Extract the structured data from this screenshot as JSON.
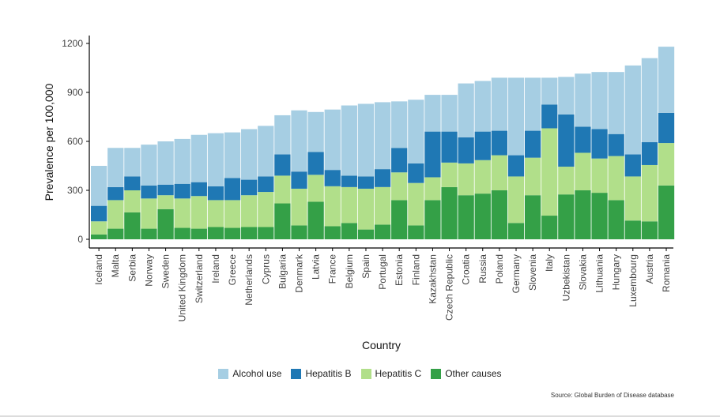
{
  "chart_data": {
    "type": "bar",
    "stacked": true,
    "xlabel": "Country",
    "ylabel": "Prevalence per 100,000",
    "ylim": [
      0,
      1250
    ],
    "yticks": [
      0,
      300,
      600,
      900,
      1200
    ],
    "grid": false,
    "legend_position": "bottom",
    "categories": [
      "Iceland",
      "Malta",
      "Serbia",
      "Norway",
      "Sweden",
      "United Kingdom",
      "Switzerland",
      "Ireland",
      "Greece",
      "Netherlands",
      "Cyprus",
      "Bulgaria",
      "Denmark",
      "Latvia",
      "France",
      "Belgium",
      "Spain",
      "Portugal",
      "Estonia",
      "Finland",
      "Kazakhstan",
      "Czech Republic",
      "Croatia",
      "Russia",
      "Poland",
      "Germany",
      "Slovenia",
      "Italy",
      "Uzbekistan",
      "Slovakia",
      "Lithuania",
      "Hungary",
      "Luxembourg",
      "Austria",
      "Romania"
    ],
    "series": [
      {
        "name": "Other causes",
        "color": "#34a047",
        "values": [
          30,
          65,
          165,
          65,
          185,
          70,
          65,
          75,
          70,
          75,
          75,
          220,
          85,
          230,
          80,
          100,
          60,
          90,
          240,
          85,
          240,
          320,
          270,
          280,
          300,
          100,
          270,
          145,
          275,
          300,
          285,
          240,
          115,
          110,
          330
        ]
      },
      {
        "name": "Hepatitis C",
        "color": "#b1df8a",
        "values": [
          80,
          175,
          135,
          185,
          85,
          180,
          200,
          165,
          170,
          195,
          215,
          170,
          225,
          165,
          245,
          220,
          250,
          230,
          170,
          260,
          140,
          150,
          195,
          205,
          215,
          285,
          230,
          535,
          170,
          230,
          210,
          270,
          270,
          345,
          260
        ]
      },
      {
        "name": "Hepatitis B",
        "color": "#1f78b4",
        "values": [
          95,
          80,
          85,
          80,
          65,
          90,
          85,
          85,
          135,
          95,
          95,
          130,
          105,
          140,
          100,
          70,
          75,
          110,
          150,
          120,
          280,
          190,
          160,
          175,
          150,
          130,
          165,
          145,
          320,
          160,
          180,
          135,
          135,
          140,
          185
        ]
      },
      {
        "name": "Alcohol use",
        "color": "#a6cee3",
        "values": [
          245,
          240,
          175,
          250,
          265,
          275,
          290,
          325,
          280,
          310,
          310,
          240,
          375,
          245,
          370,
          430,
          445,
          410,
          285,
          390,
          225,
          225,
          330,
          310,
          325,
          475,
          325,
          165,
          230,
          325,
          350,
          380,
          545,
          515,
          405
        ]
      }
    ],
    "legend_order": [
      "Alcohol use",
      "Hepatitis B",
      "Hepatitis C",
      "Other causes"
    ],
    "source": "Source: Global Burden of Disease database"
  }
}
